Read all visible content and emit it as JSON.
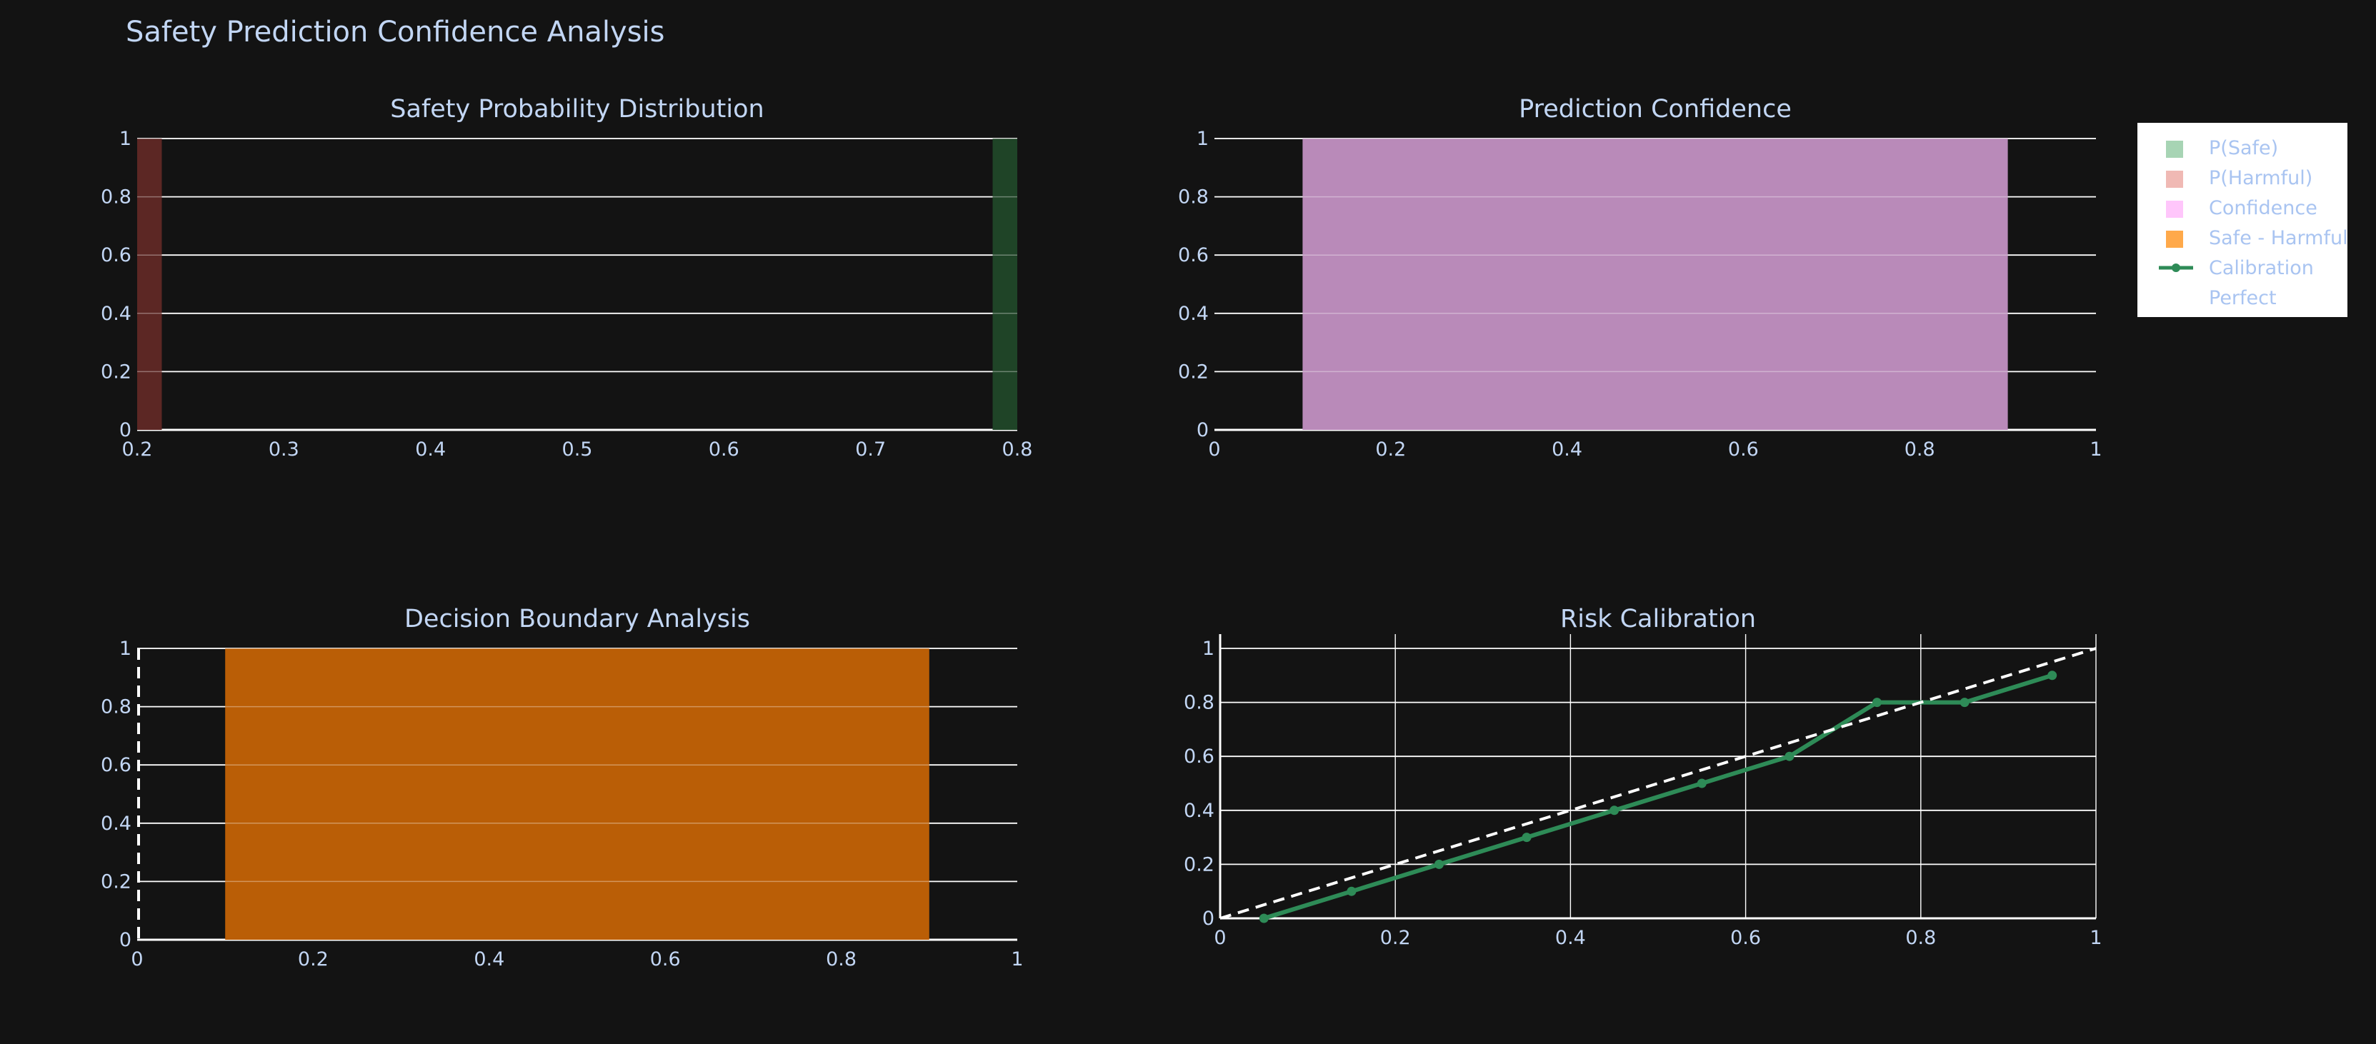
{
  "title": "Safety Prediction Confidence Analysis",
  "colors": {
    "background": "#131313",
    "title_text": "#c2d6f4",
    "tick_text": "#c2d6f4",
    "legend_text": "#a9c4f1",
    "grid": "#ffffff",
    "safe": "#1f4427",
    "harmful": "#5c2724",
    "confidence": "#b98ab9",
    "safe_minus_harmful": "#ba5e06",
    "calibration": "#2e8b57",
    "perfect": "#ffffff"
  },
  "legend": [
    {
      "label": "P(Safe)",
      "icon": "square-swatch",
      "color": "#a7d4b4"
    },
    {
      "label": "P(Harmful)",
      "icon": "square-swatch",
      "color": "#f0b9b4"
    },
    {
      "label": "Confidence",
      "icon": "square-swatch",
      "color": "#ffc6fb"
    },
    {
      "label": "Safe - Harmful",
      "icon": "square-swatch",
      "color": "#ffa94a"
    },
    {
      "label": "Calibration",
      "icon": "line-marker",
      "color": "#2e8b57"
    },
    {
      "label": "Perfect",
      "icon": "dashed-line",
      "color": "#ffffff"
    }
  ],
  "chart_data": [
    {
      "id": "safety-probability",
      "type": "bar",
      "title": "Safety Probability Distribution",
      "xlim": [
        0.2,
        0.8
      ],
      "ylim": [
        0,
        1
      ],
      "xticks": [
        0.2,
        0.3,
        0.4,
        0.5,
        0.6,
        0.7,
        0.8
      ],
      "yticks": [
        0,
        0.2,
        0.4,
        0.6,
        0.8,
        1
      ],
      "series": [
        {
          "name": "P(Safe)",
          "x": 0.8,
          "value": 1,
          "color": "#1f4427"
        },
        {
          "name": "P(Harmful)",
          "x": 0.2,
          "value": 1,
          "color": "#5c2724"
        }
      ]
    },
    {
      "id": "prediction-confidence",
      "type": "bar",
      "title": "Prediction Confidence",
      "xlim": [
        0,
        1
      ],
      "ylim": [
        0,
        1
      ],
      "xticks": [
        0,
        0.2,
        0.4,
        0.6,
        0.8,
        1
      ],
      "yticks": [
        0,
        0.2,
        0.4,
        0.6,
        0.8,
        1
      ],
      "series": [
        {
          "name": "Confidence",
          "x": 0.5,
          "value": 1,
          "color": "#b98ab9"
        }
      ]
    },
    {
      "id": "decision-boundary",
      "type": "bar",
      "title": "Decision Boundary Analysis",
      "xlim": [
        0,
        1
      ],
      "ylim": [
        0,
        1
      ],
      "xticks": [
        0,
        0.2,
        0.4,
        0.6,
        0.8,
        1
      ],
      "yticks": [
        0,
        0.2,
        0.4,
        0.6,
        0.8,
        1
      ],
      "series": [
        {
          "name": "Safe - Harmful",
          "x": 0.5,
          "value": 1,
          "color": "#ba5e06"
        }
      ],
      "vline": {
        "x": 0,
        "style": "dashed"
      }
    },
    {
      "id": "risk-calibration",
      "type": "line",
      "title": "Risk Calibration",
      "xlim": [
        0,
        1
      ],
      "ylim": [
        0,
        1
      ],
      "xticks": [
        0,
        0.2,
        0.4,
        0.6,
        0.8,
        1
      ],
      "yticks": [
        0,
        0.2,
        0.4,
        0.6,
        0.8,
        1
      ],
      "grid": true,
      "series": [
        {
          "name": "Calibration",
          "x": [
            0.05,
            0.15,
            0.25,
            0.35,
            0.45,
            0.55,
            0.65,
            0.75,
            0.85,
            0.95
          ],
          "y": [
            0,
            0.1,
            0.2,
            0.3,
            0.4,
            0.5,
            0.6,
            0.8,
            0.8,
            0.9
          ],
          "color": "#2e8b57",
          "markers": true
        },
        {
          "name": "Perfect",
          "x": [
            0,
            1
          ],
          "y": [
            0,
            1
          ],
          "color": "#ffffff",
          "dash": true
        }
      ]
    }
  ]
}
